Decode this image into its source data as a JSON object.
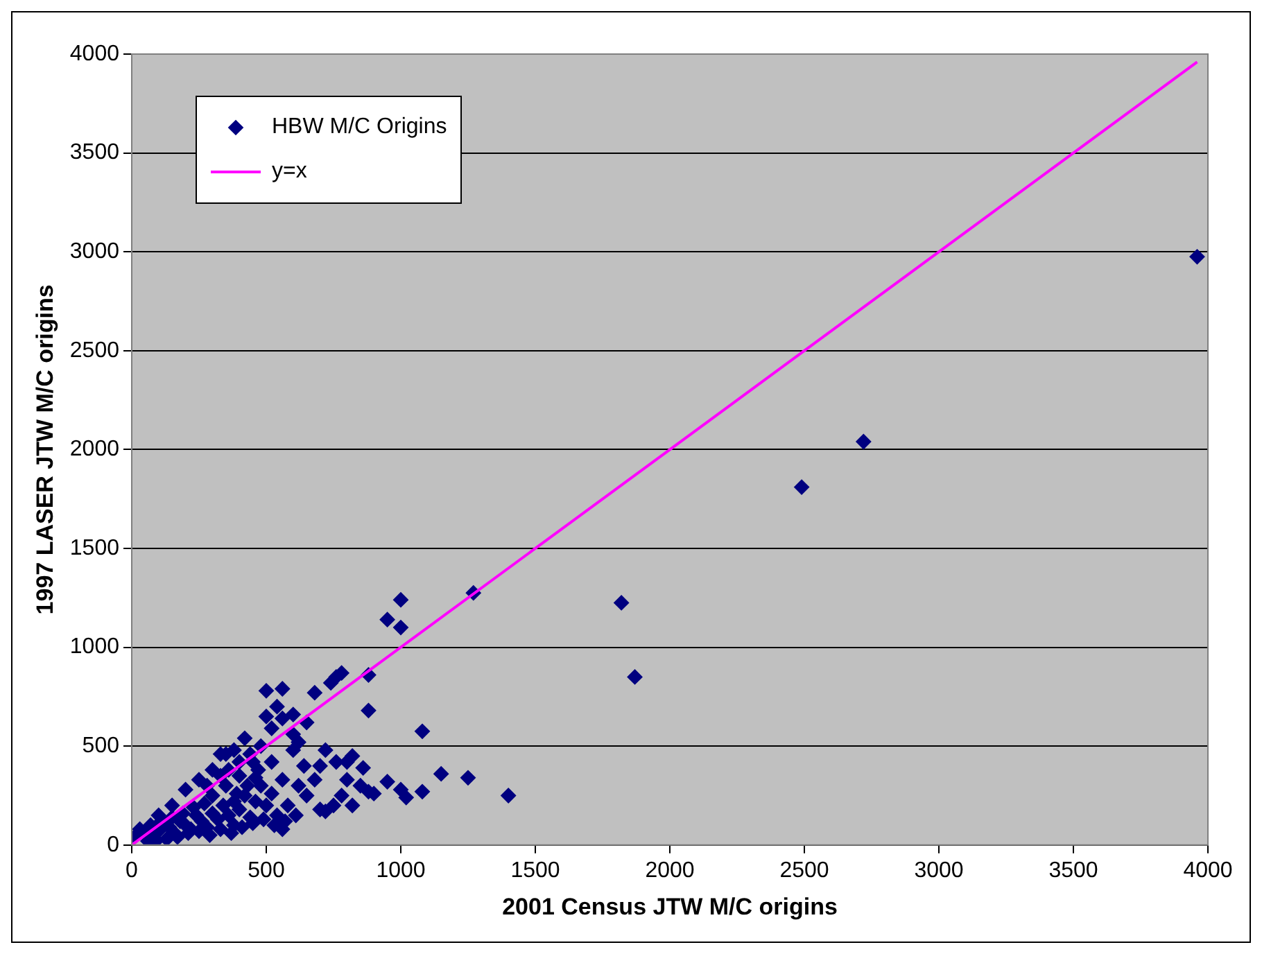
{
  "chart_data": {
    "type": "scatter",
    "xlabel": "2001 Census JTW M/C origins",
    "ylabel": "1997 LASER JTW M/C origins",
    "xlim": [
      0,
      4000
    ],
    "ylim": [
      0,
      4000
    ],
    "xticks": [
      0,
      500,
      1000,
      1500,
      2000,
      2500,
      3000,
      3500,
      4000
    ],
    "yticks": [
      0,
      500,
      1000,
      1500,
      2000,
      2500,
      3000,
      3500,
      4000
    ],
    "grid": "y",
    "legend": "top left",
    "marker": "diamond",
    "series": [
      {
        "name": "HBW M/C Origins",
        "color": "#000080",
        "x": [
          3960,
          2720,
          2490,
          1820,
          1870,
          1270,
          1000,
          950,
          1000,
          1400,
          1250,
          1150,
          1080,
          1080,
          1020,
          1000,
          950,
          880,
          880,
          880,
          820,
          800,
          780,
          760,
          740,
          720,
          700,
          680,
          650,
          600,
          560,
          560,
          540,
          500,
          500,
          480,
          420,
          380,
          360,
          330,
          300,
          250,
          200,
          150,
          100,
          600,
          640,
          620,
          580,
          560,
          700,
          750,
          780,
          820,
          850,
          900,
          650,
          680,
          720,
          760,
          800,
          860,
          60,
          50,
          80,
          100,
          140,
          160,
          180,
          200,
          220,
          240,
          260,
          280,
          300,
          320,
          340,
          360,
          380,
          400,
          420,
          440,
          460,
          480,
          500,
          520,
          540,
          30,
          70,
          110,
          90,
          130,
          170,
          210,
          250,
          290,
          330,
          370,
          410,
          450,
          490,
          530,
          570,
          610,
          350,
          400,
          450,
          470,
          430,
          390,
          300,
          270,
          230,
          190,
          150,
          10,
          440,
          350,
          400,
          280,
          520,
          560,
          600,
          620,
          520,
          460,
          380,
          330
        ],
        "values": [
          2975,
          2040,
          1810,
          1225,
          850,
          1275,
          1240,
          1140,
          1100,
          250,
          340,
          360,
          575,
          270,
          240,
          280,
          320,
          860,
          680,
          270,
          450,
          330,
          870,
          850,
          820,
          480,
          400,
          770,
          620,
          660,
          790,
          640,
          700,
          780,
          650,
          500,
          540,
          480,
          380,
          460,
          380,
          330,
          280,
          200,
          150,
          480,
          400,
          300,
          200,
          80,
          180,
          200,
          250,
          200,
          300,
          260,
          250,
          330,
          170,
          420,
          420,
          390,
          20,
          60,
          40,
          70,
          90,
          60,
          120,
          100,
          80,
          150,
          120,
          90,
          160,
          130,
          200,
          150,
          100,
          180,
          250,
          140,
          220,
          300,
          200,
          260,
          150,
          80,
          100,
          120,
          20,
          30,
          40,
          60,
          70,
          50,
          80,
          60,
          90,
          110,
          130,
          100,
          120,
          150,
          300,
          350,
          420,
          380,
          300,
          260,
          250,
          210,
          190,
          160,
          140,
          40,
          460,
          460,
          420,
          300,
          420,
          330,
          560,
          520,
          590,
          340,
          220,
          350
        ]
      },
      {
        "name": "y=x",
        "color": "#ff00ff",
        "type": "line",
        "marker": "none",
        "x": [
          0,
          3960
        ],
        "values": [
          0,
          3960
        ]
      }
    ]
  }
}
